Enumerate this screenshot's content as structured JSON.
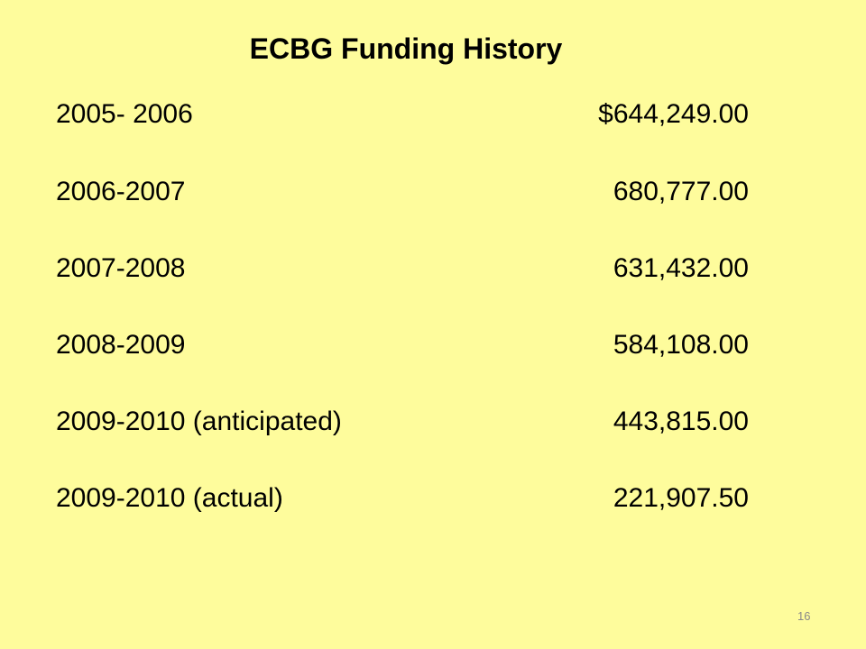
{
  "title": "ECBG Funding History",
  "table": {
    "rows": [
      [
        "2005- 2006",
        "$644,249.00"
      ],
      [
        "2006-2007",
        "680,777.00"
      ],
      [
        "2007-2008",
        "631,432.00"
      ],
      [
        "2008-2009",
        "584,108.00"
      ],
      [
        "2009-2010 (anticipated)",
        "443,815.00"
      ],
      [
        "2009-2010 (actual)",
        "221,907.50"
      ]
    ]
  },
  "page_number": "16"
}
